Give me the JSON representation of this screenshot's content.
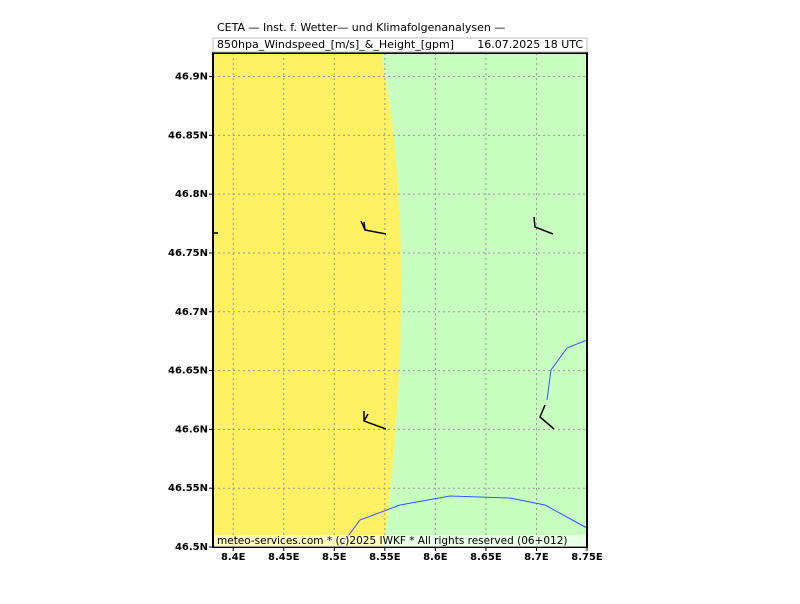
{
  "map": {
    "header": {
      "line1": "CETA — Inst. f. Wetter— und Klimafolgenanalysen —",
      "field": "850hpa_Windspeed_[m/s]_&_Height_[gpm]",
      "time": "16.07.2025 18 UTC"
    },
    "footer": "meteo-services.com * (c)2025 IWKF * All rights reserved (06+012)",
    "xlim": [
      8.38,
      8.75
    ],
    "ylim": [
      46.5,
      46.92
    ],
    "xticks": [
      {
        "value": 8.4,
        "label": "8.4E"
      },
      {
        "value": 8.45,
        "label": "8.45E"
      },
      {
        "value": 8.5,
        "label": "8.5E"
      },
      {
        "value": 8.55,
        "label": "8.55E"
      },
      {
        "value": 8.6,
        "label": "8.6E"
      },
      {
        "value": 8.65,
        "label": "8.65E"
      },
      {
        "value": 8.7,
        "label": "8.7E"
      },
      {
        "value": 8.75,
        "label": "8.75E"
      }
    ],
    "yticks": [
      {
        "value": 46.5,
        "label": "46.5N"
      },
      {
        "value": 46.55,
        "label": "46.55N"
      },
      {
        "value": 46.6,
        "label": "46.6N"
      },
      {
        "value": 46.65,
        "label": "46.65N"
      },
      {
        "value": 46.7,
        "label": "46.7N"
      },
      {
        "value": 46.75,
        "label": "46.75N"
      },
      {
        "value": 46.8,
        "label": "46.8N"
      },
      {
        "value": 46.85,
        "label": "46.85N"
      },
      {
        "value": 46.9,
        "label": "46.9N"
      }
    ],
    "grid": true
  }
}
